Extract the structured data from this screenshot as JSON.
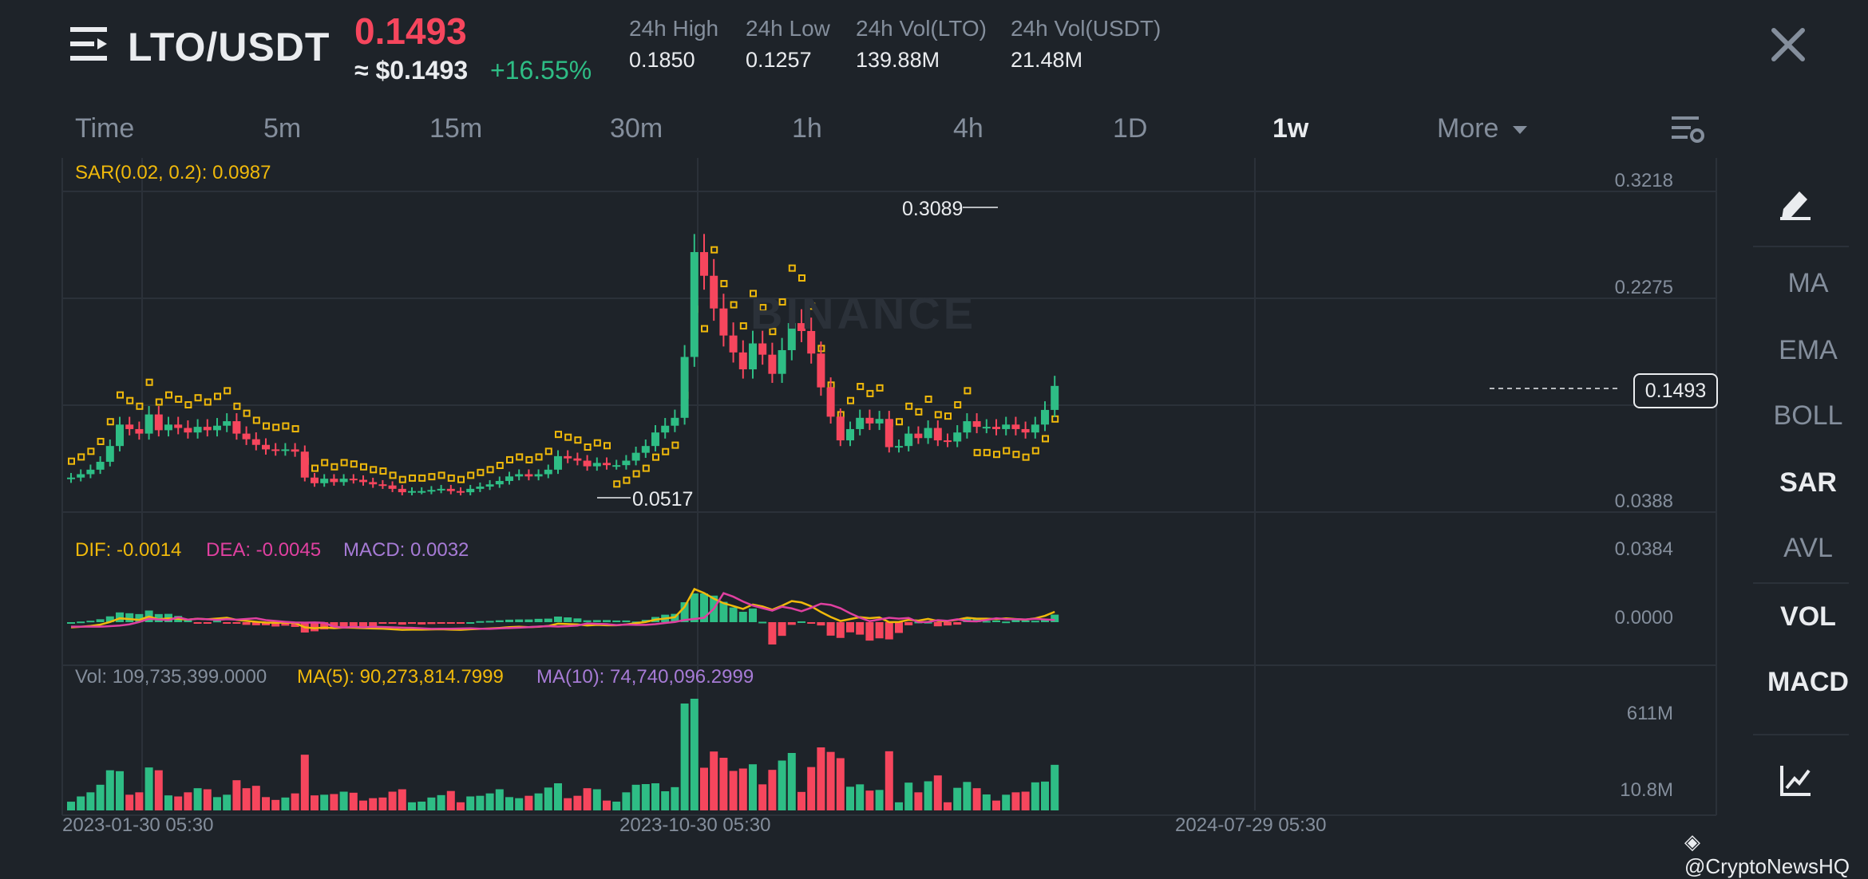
{
  "header": {
    "pair": "LTO/USDT",
    "last_price": "0.1493",
    "approx_price": "≈ $0.1493",
    "change_pct": "+16.55%",
    "stats": [
      {
        "label": "24h High",
        "value": "0.1850"
      },
      {
        "label": "24h Low",
        "value": "0.1257"
      },
      {
        "label": "24h Vol(LTO)",
        "value": "139.88M"
      },
      {
        "label": "24h Vol(USDT)",
        "value": "21.48M"
      }
    ]
  },
  "intervals": [
    "Time",
    "5m",
    "15m",
    "30m",
    "1h",
    "4h",
    "1D",
    "1w"
  ],
  "active_interval": "1w",
  "more_label": "More",
  "watermark": "BINANCE",
  "indicators": {
    "sar": "SAR(0.02, 0.2): 0.0987",
    "dif": "DIF: -0.0014",
    "dea": "DEA: -0.0045",
    "macd": "MACD: 0.0032",
    "vol": "Vol: 109,735,399.0000",
    "vol_ma5": "MA(5): 90,273,814.7999",
    "vol_ma10": "MA(10): 74,740,096.2999"
  },
  "sidebar": {
    "items": [
      {
        "label": "MA",
        "active": false
      },
      {
        "label": "EMA",
        "active": false
      },
      {
        "label": "BOLL",
        "active": false
      },
      {
        "label": "SAR",
        "active": true
      },
      {
        "label": "AVL",
        "active": false
      },
      {
        "label": "VOL",
        "active": true
      },
      {
        "label": "MACD",
        "active": true
      }
    ]
  },
  "credit": "@CryptoNewsHQ",
  "colors": {
    "up": "#2ebd85",
    "down": "#f6465d",
    "sar": "#f0b90b",
    "dea": "#e040a0",
    "macd": "#a77bd6",
    "bg": "#1e2329"
  },
  "chart_data": {
    "type": "candlestick",
    "price_axis_labels": [
      "0.3218",
      "0.2275",
      "0.0388"
    ],
    "macd_axis_labels": [
      "0.0384",
      "0.0000"
    ],
    "volume_axis_labels": [
      "611M",
      "10.8M"
    ],
    "x_tick_labels": [
      "2023-01-30 05:30",
      "2023-10-30 05:30",
      "2024-07-29 05:30"
    ],
    "high_marker": "0.3089",
    "low_marker": "0.0517",
    "current_price": "0.1493",
    "closes": [
      0.068,
      0.071,
      0.075,
      0.082,
      0.096,
      0.115,
      0.111,
      0.107,
      0.124,
      0.11,
      0.115,
      0.112,
      0.108,
      0.113,
      0.11,
      0.114,
      0.118,
      0.107,
      0.102,
      0.097,
      0.093,
      0.092,
      0.093,
      0.091,
      0.068,
      0.063,
      0.067,
      0.064,
      0.067,
      0.066,
      0.064,
      0.062,
      0.061,
      0.058,
      0.055,
      0.056,
      0.056,
      0.057,
      0.058,
      0.056,
      0.055,
      0.058,
      0.06,
      0.062,
      0.065,
      0.069,
      0.071,
      0.069,
      0.071,
      0.075,
      0.087,
      0.085,
      0.083,
      0.078,
      0.081,
      0.079,
      0.079,
      0.083,
      0.09,
      0.096,
      0.108,
      0.114,
      0.121,
      0.175,
      0.268,
      0.247,
      0.218,
      0.194,
      0.179,
      0.164,
      0.187,
      0.177,
      0.16,
      0.181,
      0.205,
      0.198,
      0.178,
      0.148,
      0.122,
      0.101,
      0.111,
      0.121,
      0.116,
      0.12,
      0.095,
      0.096,
      0.107,
      0.103,
      0.112,
      0.101,
      0.1,
      0.108,
      0.118,
      0.113,
      0.113,
      0.111,
      0.115,
      0.111,
      0.108,
      0.115,
      0.128,
      0.1493
    ],
    "sar_points": 20
  }
}
